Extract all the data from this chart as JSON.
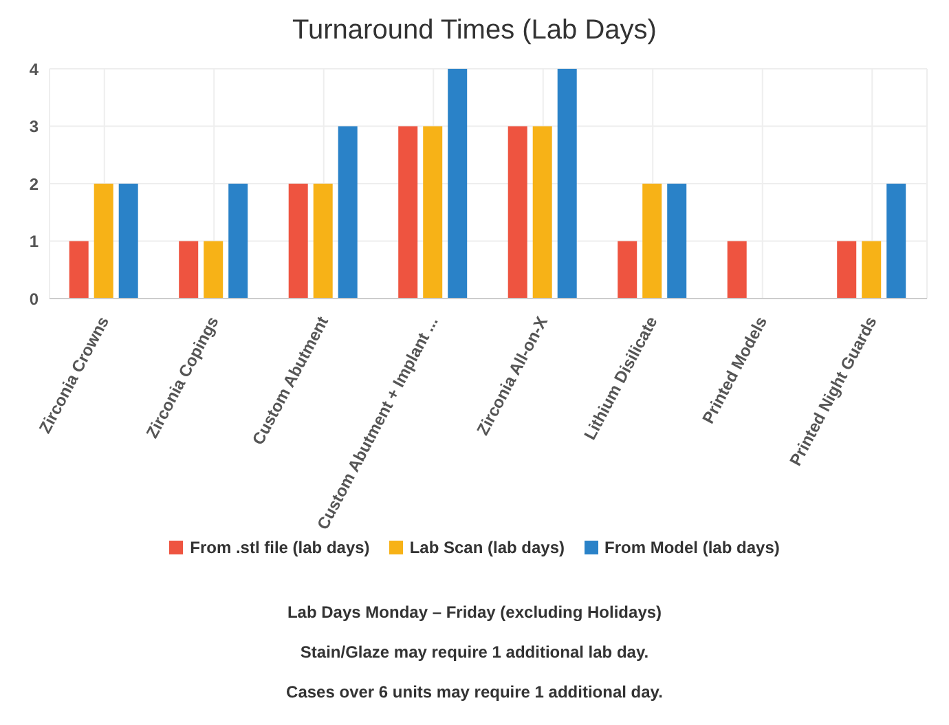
{
  "chart_data": {
    "type": "bar",
    "title": "Turnaround Times (Lab Days)",
    "categories": [
      "Zirconia Crowns",
      "Zirconia Copings",
      "Custom Abutment",
      "Custom Abutment + Implant ...",
      "Zirconia All-on-X",
      "Lithium Disilicate",
      "Printed Models",
      "Printed Night Guards"
    ],
    "series": [
      {
        "name": "From .stl file (lab days)",
        "color": "#ee5440",
        "values": [
          1,
          1,
          2,
          3,
          3,
          1,
          1,
          1
        ]
      },
      {
        "name": "Lab Scan (lab days)",
        "color": "#f7b217",
        "values": [
          2,
          1,
          2,
          3,
          3,
          2,
          0,
          1
        ]
      },
      {
        "name": "From Model (lab days)",
        "color": "#2a82c8",
        "values": [
          2,
          2,
          3,
          4,
          4,
          2,
          0,
          2
        ]
      }
    ],
    "ylim": [
      0,
      4
    ],
    "yticks": [
      0,
      1,
      2,
      3,
      4
    ],
    "grid": true,
    "legend": "bottom",
    "annotations": [
      "Lab Days Monday – Friday (excluding Holidays)",
      "Stain/Glaze may require 1 additional lab day.",
      "Cases over 6 units may require 1 additional day."
    ]
  }
}
